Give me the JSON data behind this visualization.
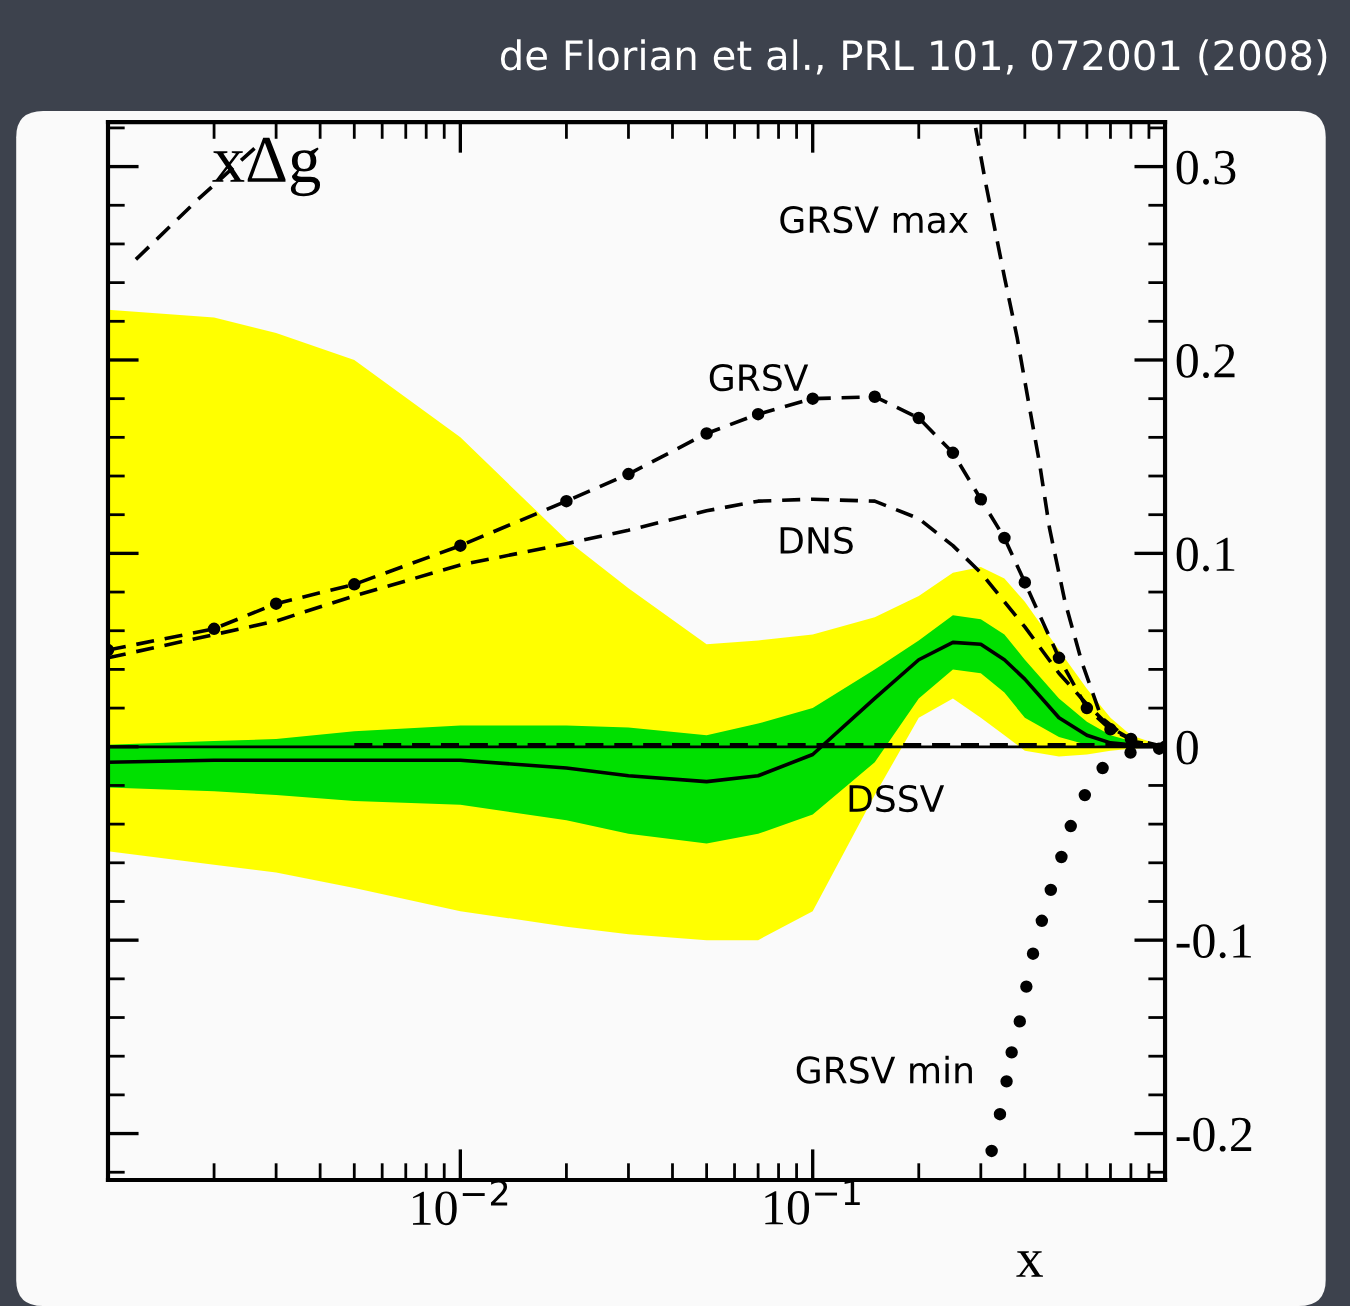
{
  "chart_data": {
    "type": "line",
    "title": "de Florian et al., PRL 101, 072001 (2008)",
    "xlabel": "x",
    "ylabel": "xΔg",
    "log": "x",
    "xlim": [
      0.001,
      1
    ],
    "xticks": [
      {
        "value": 0.001,
        "label": null
      },
      {
        "value": 0.01,
        "label": "10$^{−2}$"
      },
      {
        "value": 0.1,
        "label": "10$^{−1}$"
      },
      {
        "value": 1,
        "label": null
      }
    ],
    "ylim": [
      -0.224,
      0.323
    ],
    "yticks": [
      -0.2,
      -0.1,
      0,
      0.1,
      0.2,
      0.3
    ],
    "grid": false,
    "legend": false,
    "x": [
      0.001,
      0.002,
      0.003,
      0.005,
      0.01,
      0.02,
      0.03,
      0.05,
      0.07,
      0.1,
      0.15,
      0.2,
      0.25,
      0.3,
      0.35,
      0.4,
      0.5,
      0.6,
      0.7,
      0.8,
      1
    ],
    "ref_lines": [
      {
        "axis": "y",
        "value": 0,
        "color": "#000000",
        "line_style": "solid"
      }
    ],
    "series": [
      {
        "color": "#ffff00",
        "values": [
          null,
          null,
          null,
          null,
          null,
          null,
          null,
          null,
          null,
          null,
          null,
          null,
          null,
          null,
          null,
          null,
          null,
          null,
          null,
          null,
          null
        ],
        "upper": [
          0.226,
          0.222,
          0.214,
          0.2,
          0.16,
          0.107,
          0.082,
          0.053,
          0.055,
          0.058,
          0.067,
          0.078,
          0.09,
          0.093,
          0.087,
          0.075,
          0.05,
          0.03,
          0.015,
          0.006,
          0
        ],
        "lower": [
          -0.054,
          -0.061,
          -0.065,
          -0.073,
          -0.085,
          -0.093,
          -0.097,
          -0.1,
          -0.1,
          -0.085,
          -0.025,
          0.015,
          0.025,
          0.015,
          0.006,
          -0.002,
          -0.005,
          -0.004,
          -0.002,
          -0.001,
          0
        ]
      },
      {
        "name": "DSSV",
        "color": "#000000",
        "line_style": "solid",
        "values": [
          -0.008,
          -0.007,
          -0.007,
          -0.007,
          -0.007,
          -0.011,
          -0.015,
          -0.018,
          -0.015,
          -0.004,
          0.025,
          0.045,
          0.054,
          0.053,
          0.045,
          0.035,
          0.015,
          0.006,
          0.002,
          0.001,
          0
        ]
      },
      {
        "color": "#00e000",
        "values": [
          null,
          null,
          null,
          null,
          null,
          null,
          null,
          null,
          null,
          null,
          null,
          null,
          null,
          null,
          null,
          null,
          null,
          null,
          null,
          null,
          null
        ],
        "upper": [
          0.001,
          0.003,
          0.004,
          0.008,
          0.011,
          0.011,
          0.01,
          0.006,
          0.012,
          0.02,
          0.04,
          0.055,
          0.068,
          0.066,
          0.058,
          0.045,
          0.025,
          0.013,
          0.006,
          0.003,
          0
        ],
        "lower": [
          -0.021,
          -0.023,
          -0.025,
          -0.028,
          -0.03,
          -0.038,
          -0.045,
          -0.05,
          -0.045,
          -0.035,
          -0.008,
          0.025,
          0.04,
          0.038,
          0.028,
          0.015,
          0.005,
          0.001,
          0,
          0,
          0
        ]
      },
      {
        "name": "GRSV",
        "color": "#000000",
        "line_style": "dashed",
        "marker": "circle",
        "values": [
          0.05,
          0.061,
          0.074,
          0.084,
          0.104,
          0.127,
          0.141,
          0.162,
          0.172,
          0.18,
          0.181,
          0.17,
          0.152,
          0.128,
          0.108,
          0.085,
          0.046,
          0.02,
          0.009,
          0.004,
          0
        ]
      },
      {
        "name": "DNS",
        "color": "#000000",
        "line_style": "dashed",
        "x": [
          0.001,
          0.002,
          0.003,
          0.005,
          0.01,
          0.02,
          0.03,
          0.05,
          0.07,
          0.1,
          0.15,
          0.2,
          0.25,
          0.3,
          0.35,
          0.4,
          0.5,
          0.6,
          0.7,
          0.8
        ],
        "values": [
          0.046,
          0.058,
          0.065,
          0.078,
          0.094,
          0.105,
          0.112,
          0.122,
          0.127,
          0.128,
          0.127,
          0.118,
          0.104,
          0.09,
          0.075,
          0.062,
          0.038,
          0.022,
          0.01,
          0.004
        ]
      },
      {
        "name": "GRSV max",
        "color": "#000000",
        "line_style": "dashed",
        "x": [
          0.0012,
          0.0018,
          0.0027,
          0.01,
          0.29,
          0.31,
          0.35,
          0.38,
          0.41,
          0.44,
          0.47,
          0.52,
          0.58,
          0.66,
          0.8,
          1
        ],
        "values": [
          0.252,
          0.283,
          0.312,
          null,
          0.32,
          0.291,
          0.243,
          0.212,
          0.178,
          0.147,
          0.113,
          0.075,
          0.044,
          0.015,
          0.003,
          0
        ]
      },
      {
        "name": "GRSV min",
        "type": "scatter",
        "color": "#000000",
        "marker": "circle",
        "x": [
          0.322,
          0.34,
          0.355,
          0.367,
          0.387,
          0.404,
          0.422,
          0.447,
          0.474,
          0.508,
          0.54,
          0.592,
          0.665,
          0.798,
          0.962
        ],
        "values": [
          -0.209,
          -0.19,
          -0.173,
          -0.158,
          -0.142,
          -0.124,
          -0.107,
          -0.09,
          -0.074,
          -0.057,
          -0.041,
          -0.025,
          -0.011,
          -0.003,
          -0.001
        ]
      },
      {
        "color": "#000000",
        "line_style": "dashed",
        "x": [
          0.005,
          1
        ],
        "values": [
          0.001,
          0.001
        ]
      }
    ]
  }
}
